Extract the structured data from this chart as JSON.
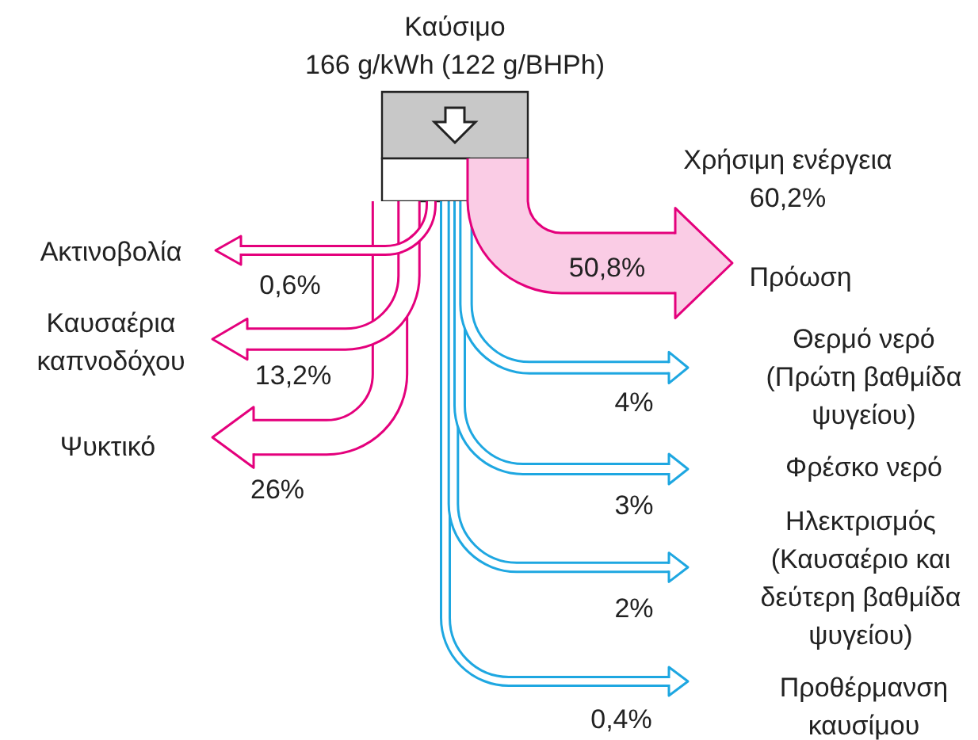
{
  "chart_data": {
    "type": "other",
    "title": "Καύσιμο",
    "subtitle": "166 g/kWh (122 g/BHPh)",
    "categories": [
      "Ακτινοβολία",
      "Καυσαέρια καπνοδόχου",
      "Ψυκτικό",
      "Πρόωση",
      "Θερμό νερό (Πρώτη βαθμίδα ψυγείου)",
      "Φρέσκο νερό",
      "Ηλεκτρισμός (Καυσαέριο και δεύτερη βαθμίδα ψυγείου)",
      "Προθέρμανση καυσίμου"
    ],
    "values": [
      0.6,
      13.2,
      26,
      50.8,
      4,
      3,
      2,
      0.4
    ],
    "value_labels": [
      "0,6%",
      "13,2%",
      "26%",
      "50,8%",
      "4%",
      "3%",
      "2%",
      "0,4%"
    ],
    "colors": [
      "#e4007c",
      "#e4007c",
      "#e4007c",
      "#e4007c",
      "#1ea7e1",
      "#1ea7e1",
      "#1ea7e1",
      "#1ea7e1"
    ],
    "annotations": [
      "Χρήσιμη ενέργεια 60,2%"
    ]
  }
}
